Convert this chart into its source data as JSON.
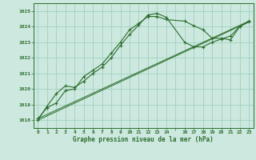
{
  "title": "Graphe pression niveau de la mer (hPa)",
  "bg_color": "#cce8df",
  "grid_color": "#99ccbb",
  "line_color": "#2d6e2d",
  "spine_color": "#2d6e2d",
  "xlim": [
    -0.5,
    23.5
  ],
  "ylim": [
    1017.5,
    1025.5
  ],
  "yticks": [
    1018,
    1019,
    1020,
    1021,
    1022,
    1023,
    1024,
    1025
  ],
  "xticks": [
    0,
    1,
    2,
    3,
    4,
    5,
    6,
    7,
    8,
    9,
    10,
    11,
    12,
    13,
    14,
    15,
    16,
    17,
    18,
    19,
    20,
    21,
    22,
    23
  ],
  "x_labels": [
    "0",
    "1",
    "2",
    "3",
    "4",
    "5",
    "6",
    "7",
    "8",
    "9",
    "10",
    "11",
    "12",
    "13",
    "14",
    "",
    "16",
    "17",
    "18",
    "19",
    "20",
    "21",
    "22",
    "23"
  ],
  "series1_x": [
    0,
    1,
    2,
    3,
    4,
    5,
    6,
    7,
    8,
    9,
    10,
    11,
    12,
    13,
    14,
    16,
    17,
    18,
    19,
    20,
    21,
    22,
    23
  ],
  "series1_y": [
    1018.1,
    1018.8,
    1019.1,
    1019.9,
    1020.0,
    1020.8,
    1021.2,
    1021.6,
    1022.3,
    1023.0,
    1023.8,
    1024.2,
    1024.65,
    1024.65,
    1024.45,
    1024.35,
    1024.05,
    1023.8,
    1023.25,
    1023.25,
    1023.15,
    1024.0,
    1024.3
  ],
  "series2_x": [
    0,
    1,
    2,
    3,
    4,
    5,
    6,
    7,
    8,
    9,
    10,
    11,
    12,
    13,
    14,
    16,
    17,
    18,
    19,
    20,
    21,
    22,
    23
  ],
  "series2_y": [
    1018.0,
    1018.9,
    1019.7,
    1020.2,
    1020.1,
    1020.5,
    1021.0,
    1021.4,
    1022.0,
    1022.8,
    1023.5,
    1024.1,
    1024.75,
    1024.85,
    1024.6,
    1023.0,
    1022.7,
    1022.7,
    1023.0,
    1023.2,
    1023.4,
    1024.0,
    1024.35
  ],
  "series3_x": [
    0,
    23
  ],
  "series3_y": [
    1018.0,
    1024.3
  ],
  "series4_x": [
    0,
    23
  ],
  "series4_y": [
    1018.1,
    1024.35
  ]
}
